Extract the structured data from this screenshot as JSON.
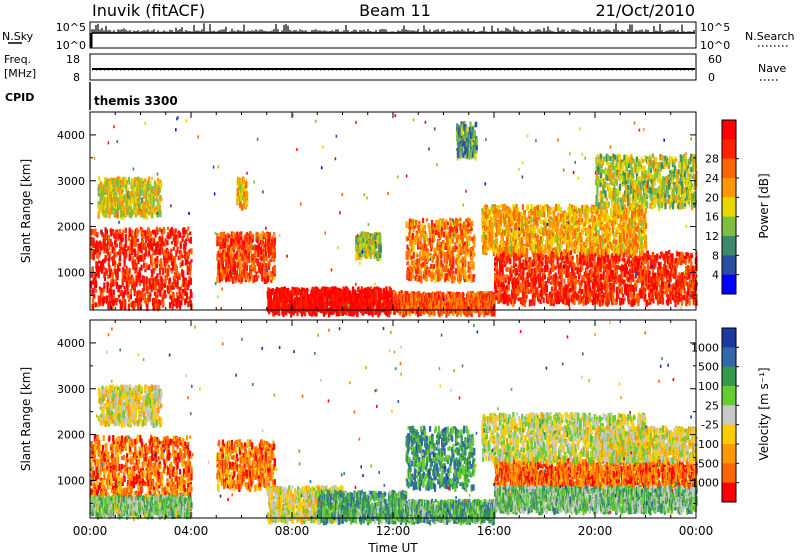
{
  "header": {
    "station": "Inuvik (fitACF)",
    "beam": "Beam 11",
    "date": "21/Oct/2010"
  },
  "top_panels": {
    "nsky_label": "N.Sky",
    "nsky_ticks": [
      "10^5",
      "10^0"
    ],
    "nsearch_label": "N.Search",
    "nsearch_ticks": [
      "10^5",
      "10^0"
    ],
    "freq_label": "Freq.",
    "freq_unit": "[MHz]",
    "freq_ticks": [
      "18",
      "8"
    ],
    "nave_label": "Nave",
    "nave_ticks": [
      "60",
      "0"
    ],
    "cpid_label": "CPID",
    "cpid_value": "themis 3300"
  },
  "colors": {
    "power": [
      "#0000ff",
      "#2b4fa0",
      "#3d8a6a",
      "#7fbf3f",
      "#e6d800",
      "#ff9900",
      "#ff6600",
      "#ff2200",
      "#ff0000"
    ],
    "velocity": [
      "#ff0000",
      "#ff6600",
      "#ff9900",
      "#ffcc00",
      "#c8c8c8",
      "#66cc33",
      "#33994d",
      "#3366aa",
      "#1a3aa0"
    ]
  },
  "chart_data": [
    {
      "type": "heatmap",
      "name": "power",
      "ylabel": "Slant Range [km]",
      "xlabel": "Time UT",
      "xlim": [
        "00:00",
        "24:00"
      ],
      "ylim": [
        180,
        4500
      ],
      "x_ticks": [
        "00:00",
        "04:00",
        "08:00",
        "12:00",
        "16:00",
        "20:00",
        "00:00"
      ],
      "y_ticks": [
        1000,
        2000,
        3000,
        4000
      ],
      "colorbar": {
        "label": "Power [dB]",
        "ticks": [
          "4",
          "8",
          "12",
          "16",
          "20",
          "24",
          "28"
        ],
        "range": [
          0,
          30
        ]
      },
      "regions": [
        {
          "t0": 0.0,
          "t1": 4.0,
          "r0": 300,
          "r1": 2000,
          "level": 0.85
        },
        {
          "t0": 0.3,
          "t1": 2.8,
          "r0": 2300,
          "r1": 3100,
          "level": 0.5
        },
        {
          "t0": 5.0,
          "t1": 7.3,
          "r0": 900,
          "r1": 1900,
          "level": 0.8
        },
        {
          "t0": 5.8,
          "t1": 6.2,
          "r0": 2500,
          "r1": 3100,
          "level": 0.55
        },
        {
          "t0": 7.0,
          "t1": 12.0,
          "r0": 180,
          "r1": 700,
          "level": 0.95
        },
        {
          "t0": 10.5,
          "t1": 11.5,
          "r0": 1400,
          "r1": 1900,
          "level": 0.45
        },
        {
          "t0": 12.5,
          "t1": 15.2,
          "r0": 900,
          "r1": 2200,
          "level": 0.7
        },
        {
          "t0": 12.0,
          "t1": 16.0,
          "r0": 180,
          "r1": 600,
          "level": 0.75
        },
        {
          "t0": 14.5,
          "t1": 15.3,
          "r0": 3600,
          "r1": 4300,
          "level": 0.3
        },
        {
          "t0": 16.0,
          "t1": 24.0,
          "r0": 400,
          "r1": 1500,
          "level": 0.85
        },
        {
          "t0": 15.5,
          "t1": 22.0,
          "r0": 1500,
          "r1": 2500,
          "level": 0.6
        },
        {
          "t0": 20.0,
          "t1": 24.0,
          "r0": 2500,
          "r1": 3600,
          "level": 0.45
        }
      ]
    },
    {
      "type": "heatmap",
      "name": "velocity",
      "ylabel": "Slant Range [km]",
      "xlabel": "Time UT",
      "xlim": [
        "00:00",
        "24:00"
      ],
      "ylim": [
        180,
        4500
      ],
      "x_ticks": [
        "00:00",
        "04:00",
        "08:00",
        "12:00",
        "16:00",
        "20:00",
        "00:00"
      ],
      "y_ticks": [
        1000,
        2000,
        3000,
        4000
      ],
      "colorbar": {
        "label": "Velocity [m s⁻¹]",
        "ticks": [
          "1000",
          "500",
          "100",
          "25",
          "-25",
          "-100",
          "-500",
          "-1000"
        ],
        "range": [
          -1000,
          1000
        ]
      },
      "regions": [
        {
          "t0": 0.0,
          "t1": 4.0,
          "r0": 700,
          "r1": 2000,
          "level": 0.2
        },
        {
          "t0": 0.3,
          "t1": 2.8,
          "r0": 2300,
          "r1": 3100,
          "level": 0.45
        },
        {
          "t0": 0.0,
          "t1": 4.0,
          "r0": 300,
          "r1": 700,
          "level": 0.6
        },
        {
          "t0": 5.0,
          "t1": 7.3,
          "r0": 900,
          "r1": 1900,
          "level": 0.22
        },
        {
          "t0": 7.0,
          "t1": 10.0,
          "r0": 180,
          "r1": 900,
          "level": 0.47
        },
        {
          "t0": 9.0,
          "t1": 12.5,
          "r0": 180,
          "r1": 800,
          "level": 0.7
        },
        {
          "t0": 12.5,
          "t1": 15.2,
          "r0": 900,
          "r1": 2200,
          "level": 0.72
        },
        {
          "t0": 12.0,
          "t1": 16.0,
          "r0": 180,
          "r1": 600,
          "level": 0.68
        },
        {
          "t0": 16.0,
          "t1": 24.0,
          "r0": 900,
          "r1": 1500,
          "level": 0.2
        },
        {
          "t0": 16.0,
          "t1": 24.0,
          "r0": 400,
          "r1": 900,
          "level": 0.62
        },
        {
          "t0": 15.5,
          "t1": 22.0,
          "r0": 1500,
          "r1": 2500,
          "level": 0.5
        },
        {
          "t0": 20.0,
          "t1": 24.0,
          "r0": 1500,
          "r1": 2200,
          "level": 0.46
        }
      ]
    }
  ]
}
